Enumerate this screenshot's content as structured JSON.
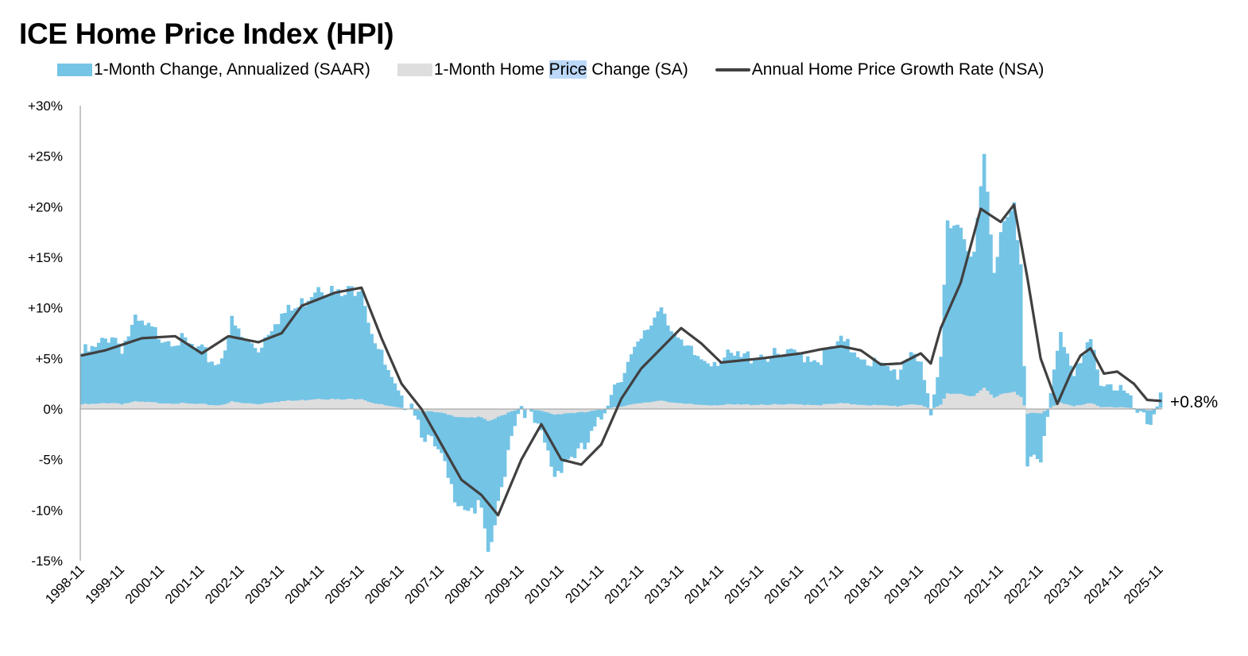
{
  "title": "ICE Home Price Index (HPI)",
  "colors": {
    "saar_bar": "#74c4e6",
    "sa_bar": "#dedede",
    "nsa_line": "#404040",
    "legend_highlight": "#bcd8f8"
  },
  "chart_data": {
    "type": "bar",
    "title": "ICE Home Price Index (HPI)",
    "xlabel": "",
    "ylabel": "",
    "ylim": [
      -15,
      30
    ],
    "y_ticks": [
      30,
      25,
      20,
      15,
      10,
      5,
      0,
      -5,
      -10,
      -15
    ],
    "y_tick_labels": [
      "+30%",
      "+25%",
      "+20%",
      "+15%",
      "+10%",
      "+5%",
      "0%",
      "-5%",
      "-10%",
      "-15%"
    ],
    "x_tick_labels": [
      "1998-11",
      "1999-11",
      "2000-11",
      "2001-11",
      "2002-11",
      "2003-11",
      "2004-11",
      "2005-11",
      "2006-11",
      "2007-11",
      "2008-11",
      "2009-11",
      "2010-11",
      "2011-11",
      "2012-11",
      "2013-11",
      "2014-11",
      "2015-11",
      "2016-11",
      "2017-11",
      "2018-11",
      "2019-11",
      "2020-11",
      "2021-11",
      "2022-11",
      "2023-11",
      "2024-11",
      "2025-11"
    ],
    "grid": false,
    "legend_placement": "top",
    "series": [
      {
        "name": "1-Month Change, Annualized (SAAR)",
        "type": "bar",
        "frequency": "monthly",
        "keypoints": [
          [
            "1998-11",
            5.5
          ],
          [
            "1999-03",
            5.8
          ],
          [
            "1999-08",
            7.5
          ],
          [
            "1999-11",
            6.2
          ],
          [
            "2000-03",
            8.5
          ],
          [
            "2000-09",
            7.5
          ],
          [
            "2001-03",
            7.0
          ],
          [
            "2001-11",
            5.5
          ],
          [
            "2002-04",
            4.5
          ],
          [
            "2002-08",
            8.5
          ],
          [
            "2002-11",
            7.0
          ],
          [
            "2003-04",
            6.0
          ],
          [
            "2003-09",
            9.0
          ],
          [
            "2004-04",
            10.0
          ],
          [
            "2004-10",
            12.5
          ],
          [
            "2005-05",
            11.0
          ],
          [
            "2005-11",
            12.5
          ],
          [
            "2006-01",
            9.0
          ],
          [
            "2006-04",
            6.0
          ],
          [
            "2006-08",
            2.5
          ],
          [
            "2006-11",
            0.5
          ],
          [
            "2007-02",
            1.0
          ],
          [
            "2007-05",
            -2.0
          ],
          [
            "2007-11",
            -5.0
          ],
          [
            "2008-02",
            -8.0
          ],
          [
            "2008-06",
            -9.5
          ],
          [
            "2008-11",
            -10.0
          ],
          [
            "2009-01",
            -15.0
          ],
          [
            "2009-05",
            -8.0
          ],
          [
            "2009-08",
            -2.0
          ],
          [
            "2009-11",
            0.5
          ],
          [
            "2010-03",
            -1.5
          ],
          [
            "2010-06",
            -3.5
          ],
          [
            "2010-09",
            -6.5
          ],
          [
            "2010-12",
            -5.0
          ],
          [
            "2011-06",
            -4.0
          ],
          [
            "2011-11",
            -1.0
          ],
          [
            "2012-02",
            2.0
          ],
          [
            "2012-06",
            4.0
          ],
          [
            "2012-11",
            6.5
          ],
          [
            "2013-05",
            10.5
          ],
          [
            "2013-11",
            6.0
          ],
          [
            "2014-05",
            5.0
          ],
          [
            "2014-11",
            5.0
          ],
          [
            "2015-05",
            5.0
          ],
          [
            "2015-11",
            5.5
          ],
          [
            "2016-05",
            5.0
          ],
          [
            "2016-11",
            5.5
          ],
          [
            "2017-05",
            5.0
          ],
          [
            "2017-11",
            6.5
          ],
          [
            "2018-05",
            5.5
          ],
          [
            "2018-11",
            4.0
          ],
          [
            "2019-04",
            3.5
          ],
          [
            "2019-08",
            6.0
          ],
          [
            "2019-11",
            5.0
          ],
          [
            "2020-02",
            -1.5
          ],
          [
            "2020-05",
            5.0
          ],
          [
            "2020-07",
            19.0
          ],
          [
            "2020-11",
            18.0
          ],
          [
            "2021-03",
            15.0
          ],
          [
            "2021-06",
            25.0
          ],
          [
            "2021-09",
            13.0
          ],
          [
            "2021-11",
            18.0
          ],
          [
            "2022-03",
            21.0
          ],
          [
            "2022-05",
            14.0
          ],
          [
            "2022-07",
            -6.0
          ],
          [
            "2022-09",
            -5.0
          ],
          [
            "2022-11",
            -5.5
          ],
          [
            "2023-02",
            2.0
          ],
          [
            "2023-05",
            8.0
          ],
          [
            "2023-09",
            3.0
          ],
          [
            "2024-02",
            6.5
          ],
          [
            "2024-05",
            3.0
          ],
          [
            "2024-11",
            2.0
          ],
          [
            "2025-05",
            -1.0
          ],
          [
            "2025-08",
            -1.5
          ],
          [
            "2025-11",
            2.0
          ]
        ]
      },
      {
        "name": "1-Month Home Price Change (SA)",
        "type": "bar",
        "frequency": "monthly",
        "derived_from": "SAAR series (monthly change, roughly one twelfth of the annualized rate)"
      },
      {
        "name": "Annual Home Price Growth Rate (NSA)",
        "type": "line",
        "frequency": "monthly",
        "keypoints": [
          [
            "1998-11",
            5.3
          ],
          [
            "1999-06",
            5.8
          ],
          [
            "2000-05",
            7.0
          ],
          [
            "2001-03",
            7.2
          ],
          [
            "2001-11",
            5.5
          ],
          [
            "2002-07",
            7.2
          ],
          [
            "2003-04",
            6.6
          ],
          [
            "2003-11",
            7.5
          ],
          [
            "2004-05",
            10.2
          ],
          [
            "2005-03",
            11.5
          ],
          [
            "2005-11",
            12.0
          ],
          [
            "2006-05",
            7.0
          ],
          [
            "2006-11",
            2.5
          ],
          [
            "2007-05",
            0.0
          ],
          [
            "2007-11",
            -3.5
          ],
          [
            "2008-05",
            -7.0
          ],
          [
            "2008-11",
            -8.5
          ],
          [
            "2009-04",
            -10.5
          ],
          [
            "2009-11",
            -5.0
          ],
          [
            "2010-05",
            -1.5
          ],
          [
            "2010-11",
            -5.0
          ],
          [
            "2011-05",
            -5.5
          ],
          [
            "2011-11",
            -3.5
          ],
          [
            "2012-05",
            1.0
          ],
          [
            "2012-11",
            4.0
          ],
          [
            "2013-11",
            8.0
          ],
          [
            "2014-05",
            6.5
          ],
          [
            "2014-11",
            4.6
          ],
          [
            "2015-11",
            5.0
          ],
          [
            "2016-11",
            5.5
          ],
          [
            "2017-05",
            5.9
          ],
          [
            "2017-11",
            6.2
          ],
          [
            "2018-05",
            5.8
          ],
          [
            "2018-11",
            4.4
          ],
          [
            "2019-05",
            4.5
          ],
          [
            "2019-11",
            5.5
          ],
          [
            "2020-02",
            4.5
          ],
          [
            "2020-05",
            8.0
          ],
          [
            "2020-11",
            12.5
          ],
          [
            "2021-05",
            19.8
          ],
          [
            "2021-11",
            18.5
          ],
          [
            "2022-03",
            20.2
          ],
          [
            "2022-07",
            13.0
          ],
          [
            "2022-11",
            5.0
          ],
          [
            "2023-04",
            0.5
          ],
          [
            "2023-08",
            3.5
          ],
          [
            "2023-11",
            5.3
          ],
          [
            "2024-02",
            6.0
          ],
          [
            "2024-06",
            3.5
          ],
          [
            "2024-10",
            3.7
          ],
          [
            "2025-03",
            2.5
          ],
          [
            "2025-07",
            0.9
          ],
          [
            "2025-11",
            0.8
          ]
        ],
        "end_label": "+0.8%"
      }
    ]
  }
}
